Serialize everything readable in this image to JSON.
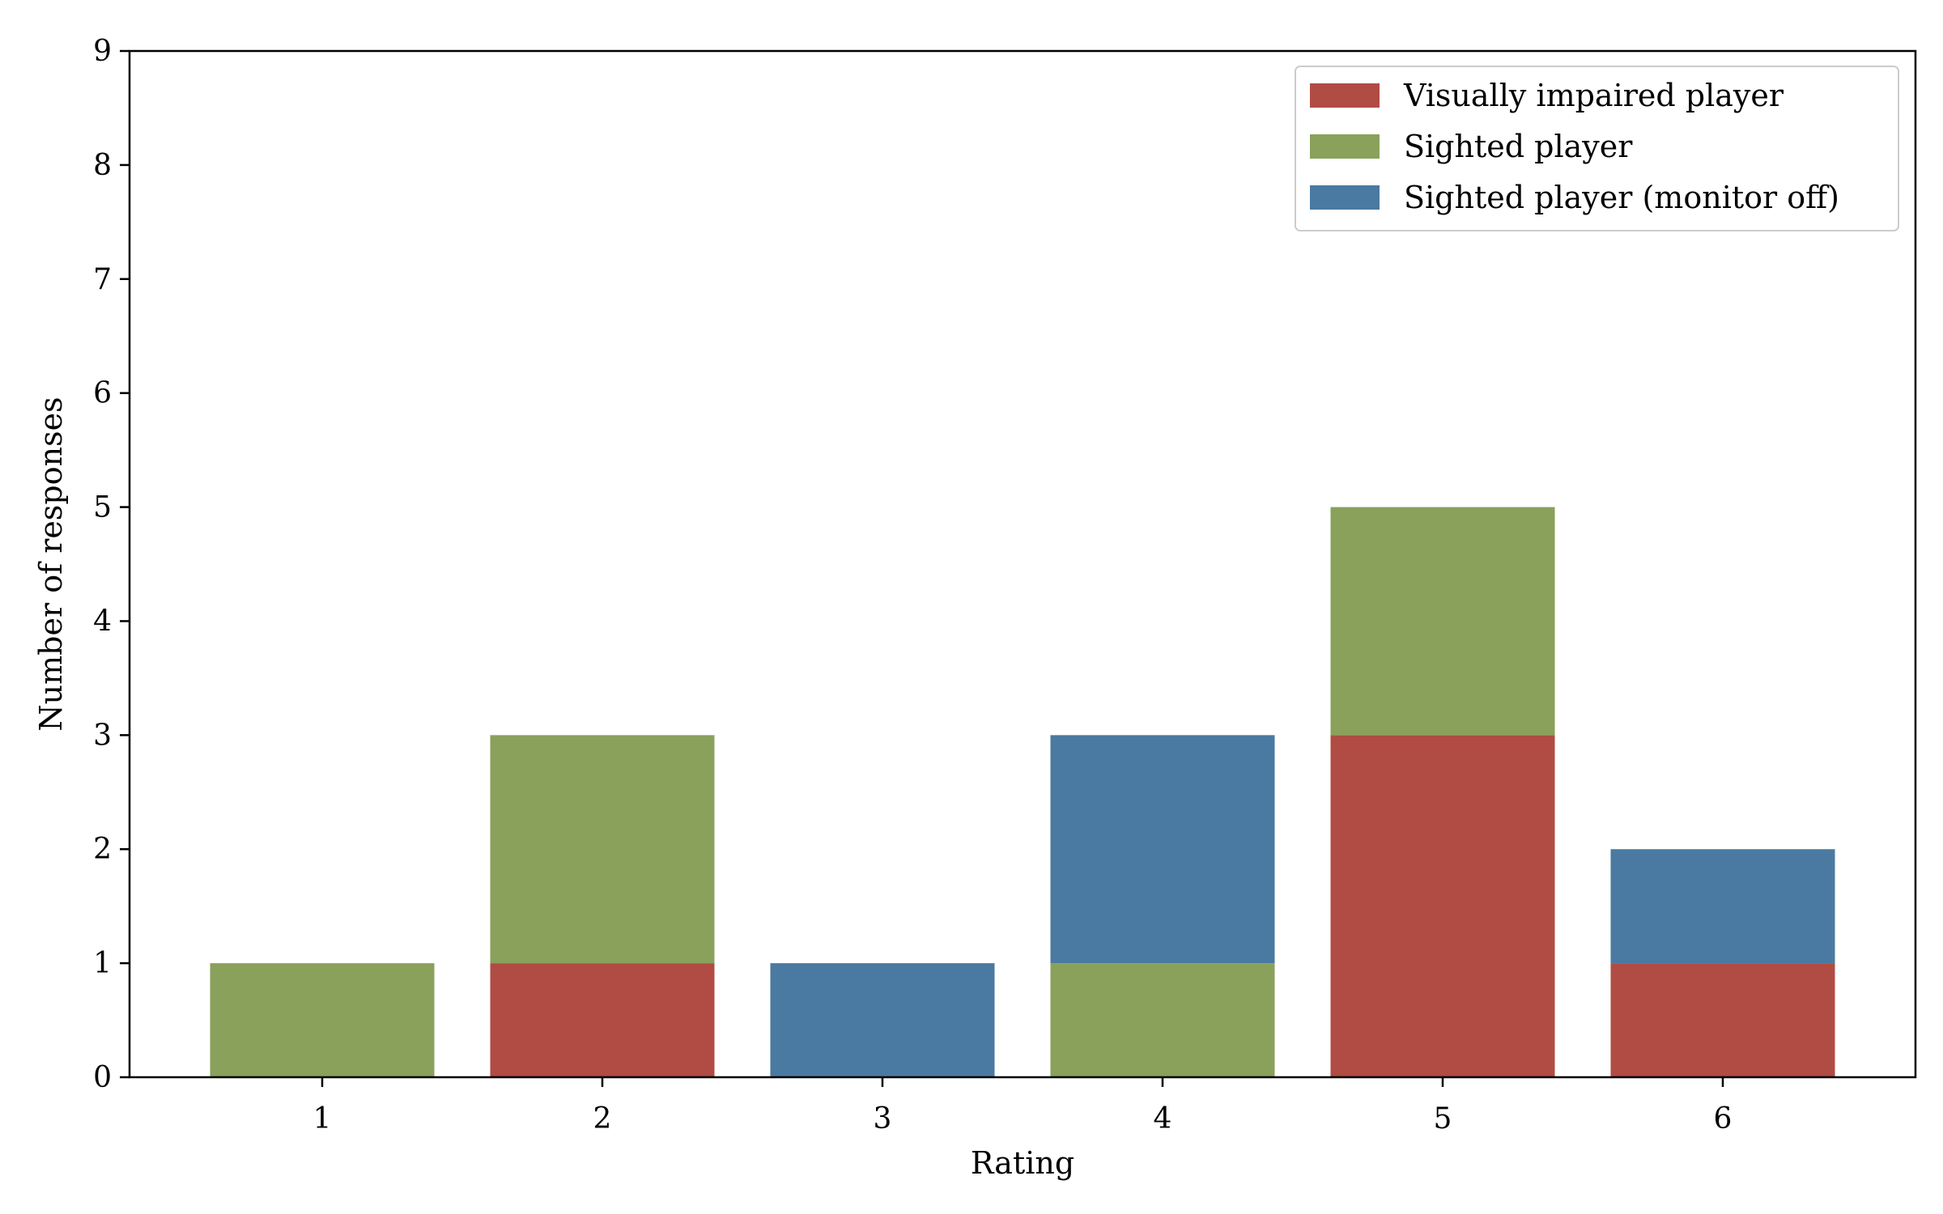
{
  "chart_data": {
    "type": "bar",
    "stacked": true,
    "categories": [
      "1",
      "2",
      "3",
      "4",
      "5",
      "6"
    ],
    "series": [
      {
        "name": "Visually impaired player",
        "color": "#b04c43",
        "values": [
          0,
          1,
          0,
          0,
          3,
          1
        ]
      },
      {
        "name": "Sighted player",
        "color": "#89a15b",
        "values": [
          1,
          2,
          0,
          1,
          2,
          0
        ]
      },
      {
        "name": "Sighted player (monitor off)",
        "color": "#4a7aa1",
        "values": [
          0,
          0,
          1,
          2,
          0,
          1
        ]
      }
    ],
    "xlabel": "Rating",
    "ylabel": "Number of responses",
    "ylim": [
      0,
      9
    ],
    "yticks": [
      "0",
      "1",
      "2",
      "3",
      "4",
      "5",
      "6",
      "7",
      "8",
      "9"
    ],
    "grid": false,
    "legend_position": "top-right"
  }
}
